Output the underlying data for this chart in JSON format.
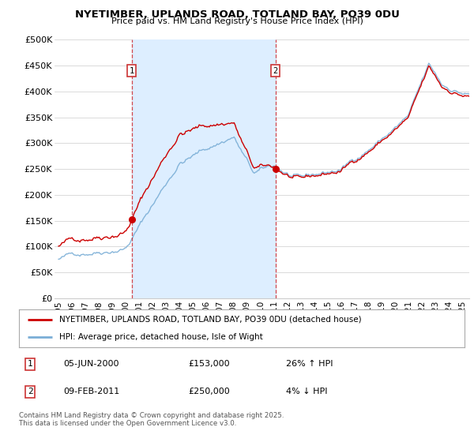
{
  "title": "NYETIMBER, UPLANDS ROAD, TOTLAND BAY, PO39 0DU",
  "subtitle": "Price paid vs. HM Land Registry's House Price Index (HPI)",
  "legend_label_red": "NYETIMBER, UPLANDS ROAD, TOTLAND BAY, PO39 0DU (detached house)",
  "legend_label_blue": "HPI: Average price, detached house, Isle of Wight",
  "footer": "Contains HM Land Registry data © Crown copyright and database right 2025.\nThis data is licensed under the Open Government Licence v3.0.",
  "sale1": {
    "label": "1",
    "date": "05-JUN-2000",
    "price": "£153,000",
    "hpi_diff": "26% ↑ HPI",
    "x_year": 2000.43,
    "y_val": 153000
  },
  "sale2": {
    "label": "2",
    "date": "09-FEB-2011",
    "price": "£250,000",
    "hpi_diff": "4% ↓ HPI",
    "x_year": 2011.11,
    "y_val": 250000
  },
  "vline1_x": 2000.43,
  "vline2_x": 2011.11,
  "shaded_region": [
    2000.43,
    2011.11
  ],
  "ylim": [
    0,
    500000
  ],
  "xlim": [
    1994.7,
    2025.5
  ],
  "yticks": [
    0,
    50000,
    100000,
    150000,
    200000,
    250000,
    300000,
    350000,
    400000,
    450000,
    500000
  ],
  "ytick_labels": [
    "£0",
    "£50K",
    "£100K",
    "£150K",
    "£200K",
    "£250K",
    "£300K",
    "£350K",
    "£400K",
    "£450K",
    "£500K"
  ],
  "xticks": [
    1995,
    1996,
    1997,
    1998,
    1999,
    2000,
    2001,
    2002,
    2003,
    2004,
    2005,
    2006,
    2007,
    2008,
    2009,
    2010,
    2011,
    2012,
    2013,
    2014,
    2015,
    2016,
    2017,
    2018,
    2019,
    2020,
    2021,
    2022,
    2023,
    2024,
    2025
  ],
  "red_color": "#cc0000",
  "blue_color": "#7aaed6",
  "vline_color": "#cc0000",
  "shade_color": "#ddeeff",
  "background_color": "#ffffff",
  "grid_color": "#cccccc",
  "label_box_color": "#cc3333",
  "hpi_base_1995": 75000,
  "hpi_base_2000": 112000,
  "hpi_base_2004": 278000,
  "hpi_base_2008": 330000,
  "hpi_base_2009_5": 255000,
  "hpi_base_2011": 265000,
  "hpi_base_2013": 235000,
  "hpi_base_2016": 250000,
  "hpi_base_2021": 355000,
  "hpi_base_2022_5": 445000,
  "hpi_base_2023_5": 405000,
  "hpi_base_2025_5": 390000
}
